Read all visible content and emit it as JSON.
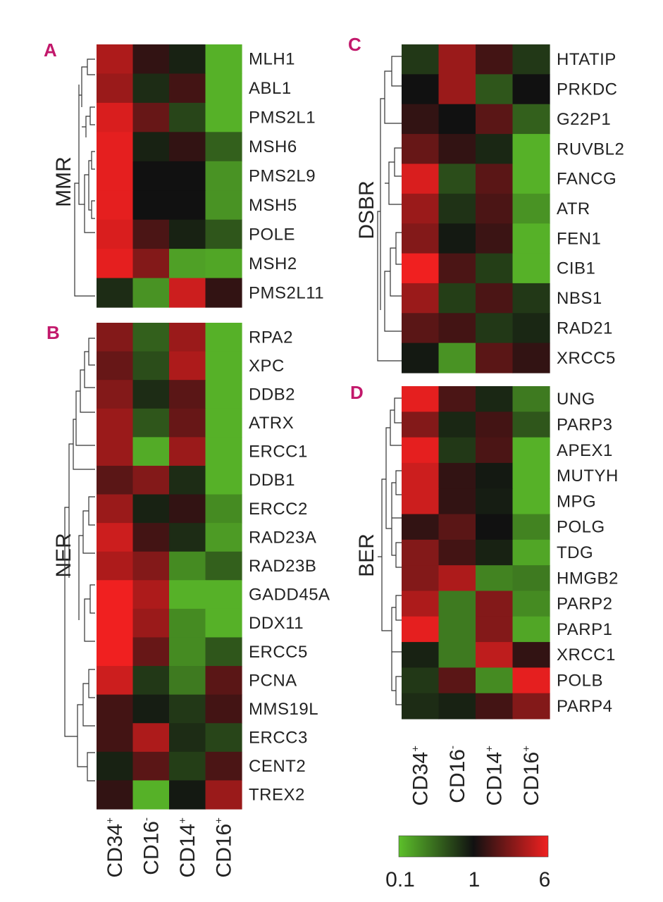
{
  "chart_data": [
    {
      "type": "heatmap",
      "panel": "A",
      "group_label": "MMR",
      "columns": [
        "CD34+",
        "CD16-",
        "CD14+",
        "CD16+"
      ],
      "rows": [
        "MLH1",
        "ABL1",
        "PMS2L1",
        "MSH6",
        "PMS2L9",
        "MSH5",
        "POLE",
        "MSH2",
        "PMS2L11"
      ],
      "values": [
        [
          3.5,
          1.3,
          0.8,
          0.12
        ],
        [
          3.0,
          0.7,
          1.5,
          0.12
        ],
        [
          5.0,
          2.0,
          0.5,
          0.12
        ],
        [
          5.5,
          0.8,
          1.3,
          0.35
        ],
        [
          5.5,
          1.0,
          1.0,
          0.18
        ],
        [
          5.5,
          1.0,
          1.0,
          0.18
        ],
        [
          5.0,
          1.6,
          0.8,
          0.4
        ],
        [
          5.5,
          2.5,
          0.15,
          0.14
        ],
        [
          0.7,
          0.18,
          4.5,
          1.3
        ]
      ]
    },
    {
      "type": "heatmap",
      "panel": "B",
      "group_label": "NER",
      "columns": [
        "CD34+",
        "CD16-",
        "CD14+",
        "CD16+"
      ],
      "rows": [
        "RPA2",
        "XPC",
        "DDB2",
        "ATRX",
        "ERCC1",
        "DDB1",
        "ERCC2",
        "RAD23A",
        "RAD23B",
        "GADD45A",
        "DDX11",
        "ERCC5",
        "PCNA",
        "MMS19L",
        "ERCC3",
        "CENT2",
        "TREX2"
      ],
      "values": [
        [
          2.5,
          0.35,
          3.0,
          0.12
        ],
        [
          2.0,
          0.45,
          3.5,
          0.12
        ],
        [
          2.5,
          0.7,
          1.8,
          0.12
        ],
        [
          3.0,
          0.4,
          2.0,
          0.12
        ],
        [
          3.0,
          0.13,
          3.0,
          0.12
        ],
        [
          1.8,
          2.5,
          0.7,
          0.12
        ],
        [
          3.0,
          0.8,
          1.3,
          0.2
        ],
        [
          4.5,
          1.5,
          0.7,
          0.16
        ],
        [
          3.5,
          2.5,
          0.2,
          0.35
        ],
        [
          6.0,
          3.5,
          0.12,
          0.12
        ],
        [
          6.0,
          3.0,
          0.2,
          0.12
        ],
        [
          6.0,
          2.0,
          0.2,
          0.4
        ],
        [
          4.5,
          0.6,
          0.25,
          1.8
        ],
        [
          1.5,
          0.85,
          0.6,
          1.5
        ],
        [
          1.5,
          3.5,
          0.7,
          0.5
        ],
        [
          0.8,
          1.8,
          0.55,
          1.6
        ],
        [
          1.3,
          0.12,
          0.9,
          3.0
        ]
      ]
    },
    {
      "type": "heatmap",
      "panel": "C",
      "group_label": "DSBR",
      "columns": [
        "CD34+",
        "CD16-",
        "CD14+",
        "CD16+"
      ],
      "rows": [
        "HTATIP",
        "PRKDC",
        "G22P1",
        "RUVBL2",
        "FANCG",
        "ATR",
        "FEN1",
        "CIB1",
        "NBS1",
        "RAD21",
        "XRCC5"
      ],
      "values": [
        [
          0.6,
          3.0,
          1.5,
          0.6
        ],
        [
          1.0,
          3.0,
          0.4,
          1.0
        ],
        [
          1.3,
          1.0,
          1.8,
          0.35
        ],
        [
          2.0,
          1.3,
          0.75,
          0.12
        ],
        [
          5.0,
          0.45,
          1.8,
          0.12
        ],
        [
          3.0,
          0.65,
          1.6,
          0.18
        ],
        [
          2.5,
          0.9,
          1.4,
          0.12
        ],
        [
          6.0,
          1.6,
          0.55,
          0.12
        ],
        [
          3.0,
          0.55,
          1.6,
          0.6
        ],
        [
          1.8,
          1.5,
          0.6,
          0.75
        ],
        [
          0.9,
          0.18,
          1.8,
          1.3
        ]
      ]
    },
    {
      "type": "heatmap",
      "panel": "D",
      "group_label": "BER",
      "columns": [
        "CD34+",
        "CD16-",
        "CD14+",
        "CD16+"
      ],
      "rows": [
        "UNG",
        "PARP3",
        "APEX1",
        "MUTYH",
        "MPG",
        "POLG",
        "TDG",
        "HMGB2",
        "PARP2",
        "PARP1",
        "XRCC1",
        "POLB",
        "PARP4"
      ],
      "values": [
        [
          5.5,
          1.6,
          0.75,
          0.25
        ],
        [
          2.5,
          0.75,
          1.5,
          0.4
        ],
        [
          5.5,
          0.6,
          1.6,
          0.12
        ],
        [
          4.5,
          1.3,
          0.9,
          0.12
        ],
        [
          4.5,
          1.3,
          0.85,
          0.12
        ],
        [
          1.3,
          1.8,
          1.0,
          0.22
        ],
        [
          2.5,
          1.5,
          0.8,
          0.14
        ],
        [
          2.5,
          3.5,
          0.22,
          0.25
        ],
        [
          3.5,
          0.25,
          2.5,
          0.2
        ],
        [
          5.5,
          0.25,
          2.5,
          0.14
        ],
        [
          0.8,
          0.25,
          4.0,
          1.3
        ],
        [
          0.6,
          1.8,
          0.2,
          5.5
        ],
        [
          0.7,
          0.8,
          1.5,
          2.5
        ]
      ]
    }
  ],
  "colorbar": {
    "ticks": [
      "0.1",
      "1",
      "6"
    ],
    "min": 0.1,
    "mid": 1,
    "max": 6,
    "colors": {
      "low": "#5cbf2a",
      "mid": "#111111",
      "high": "#f02020"
    }
  },
  "panel_letter_color": "#c2186b"
}
